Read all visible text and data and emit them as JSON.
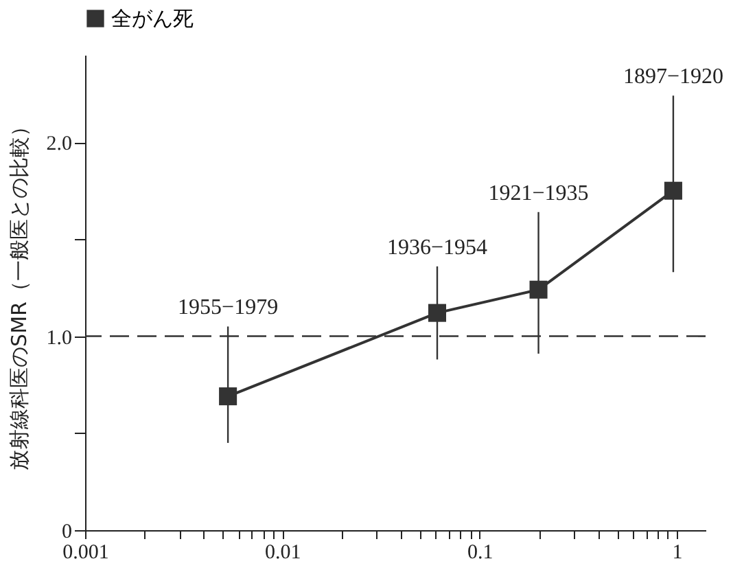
{
  "chart_data": {
    "type": "line",
    "ylabel": "放射線科医のSMR（一般医との比較）",
    "x": [
      0.0053,
      0.061,
      0.199,
      0.96
    ],
    "series": [
      {
        "name": "全がん死",
        "color": "#333333",
        "values": [
          0.69,
          1.12,
          1.24,
          1.75
        ],
        "errors": [
          [
            0.45,
            1.05
          ],
          [
            0.88,
            1.36
          ],
          [
            0.91,
            1.64
          ],
          [
            1.33,
            2.24
          ]
        ]
      }
    ],
    "marker": "square",
    "line_style": "solid",
    "log": "x",
    "grid": false,
    "legend": "top",
    "xlim": [
      0.001,
      1.4
    ],
    "xticks": [
      0.001,
      {
        "value": 0.002,
        "label": null
      },
      {
        "value": 0.003,
        "label": null
      },
      {
        "value": 0.004,
        "label": null
      },
      {
        "value": 0.005,
        "label": null
      },
      {
        "value": 0.006,
        "label": null
      },
      {
        "value": 0.007,
        "label": null
      },
      {
        "value": 0.008,
        "label": null
      },
      {
        "value": 0.009,
        "label": null
      },
      0.01,
      {
        "value": 0.02,
        "label": null
      },
      {
        "value": 0.03,
        "label": null
      },
      {
        "value": 0.04,
        "label": null
      },
      {
        "value": 0.05,
        "label": null
      },
      {
        "value": 0.06,
        "label": null
      },
      {
        "value": 0.07,
        "label": null
      },
      {
        "value": 0.08,
        "label": null
      },
      {
        "value": 0.09,
        "label": null
      },
      0.1,
      {
        "value": 0.2,
        "label": null
      },
      {
        "value": 0.3,
        "label": null
      },
      {
        "value": 0.4,
        "label": null
      },
      {
        "value": 0.5,
        "label": null
      },
      {
        "value": 0.6,
        "label": null
      },
      {
        "value": 0.7,
        "label": null
      },
      {
        "value": 0.8,
        "label": null
      },
      {
        "value": 0.9,
        "label": null
      },
      1
    ],
    "ylim": [
      0,
      2.45
    ],
    "yticks": [
      0,
      {
        "value": 0.5,
        "label": null
      },
      {
        "value": 1,
        "label": "1.0"
      },
      {
        "value": 1.5,
        "label": null
      },
      {
        "value": 2,
        "label": "2.0"
      }
    ],
    "ref_lines": [
      {
        "axis": "y",
        "value": 1,
        "color": "#333333",
        "line_style": "dashed"
      }
    ],
    "annotations": [
      {
        "text": "1955−1979",
        "x": 0.0053,
        "y": 1.05
      },
      {
        "text": "1936−1954",
        "x": 0.061,
        "y": 1.36
      },
      {
        "text": "1921−1935",
        "x": 0.199,
        "y": 1.64
      },
      {
        "text": "1897−1920",
        "x": 0.96,
        "y": 2.24
      }
    ]
  }
}
